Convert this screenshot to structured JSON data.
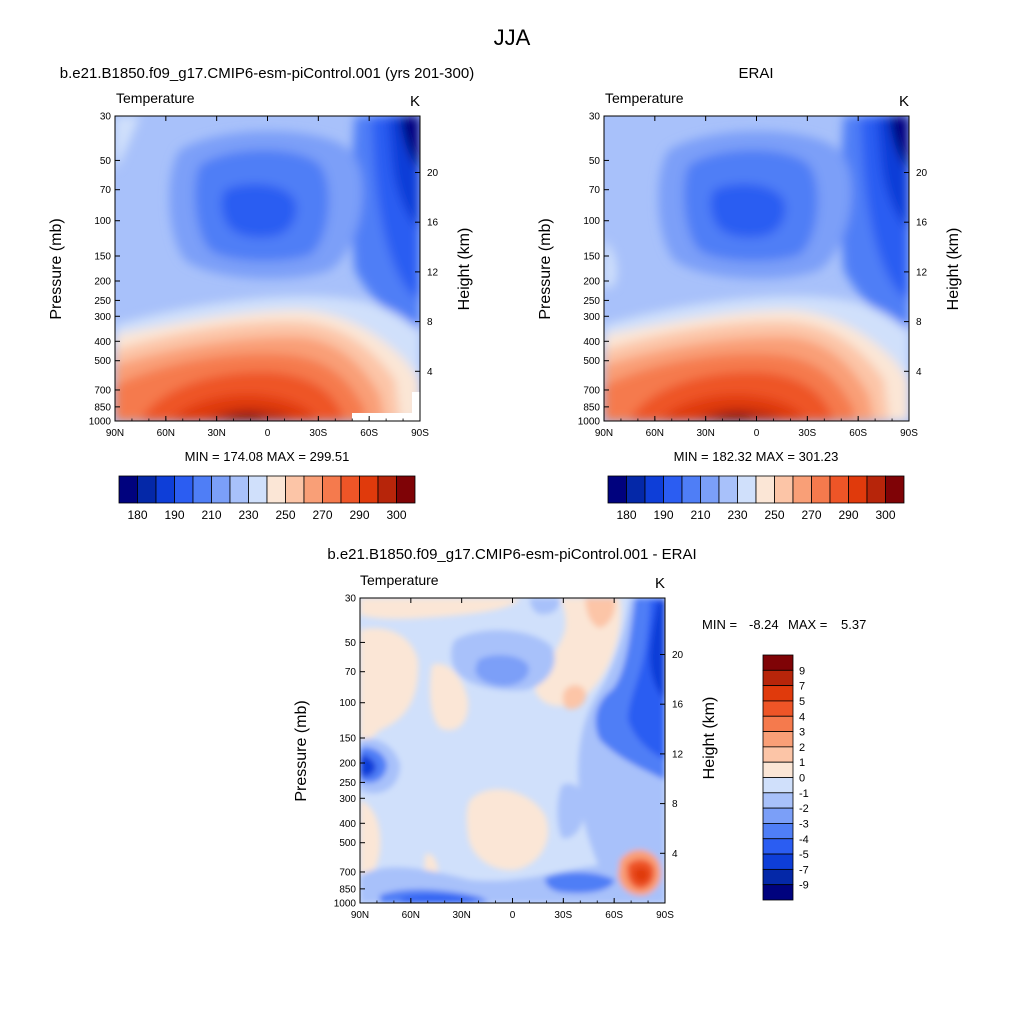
{
  "page": {
    "title": "JJA"
  },
  "chart_data": [
    {
      "type": "heatmap",
      "title": "b.e21.B1850.f09_g17.CMIP6-esm-piControl.001 (yrs 201-300)",
      "variable": "Temperature",
      "units": "K",
      "xlabel": "",
      "ylabel": "Pressure (mb)",
      "ylabel_right": "Height (km)",
      "x_ticks": [
        "90N",
        "60N",
        "30N",
        "0",
        "30S",
        "60S",
        "90S"
      ],
      "y_ticks": [
        "30",
        "50",
        "70",
        "100",
        "150",
        "200",
        "250",
        "300",
        "400",
        "500",
        "700",
        "850",
        "1000"
      ],
      "y_right_ticks": [
        "20",
        "16",
        "12",
        "8",
        "4"
      ],
      "y_scale": "log",
      "stats": "MIN = 174.08  MAX = 299.51",
      "min": 174.08,
      "max": 299.51,
      "colorbar": {
        "orientation": "horizontal",
        "labels": [
          "180",
          "190",
          "210",
          "230",
          "250",
          "270",
          "290",
          "300"
        ],
        "colors": [
          "#00027e",
          "#0428a8",
          "#0e3ed8",
          "#2b5df2",
          "#4f7ef6",
          "#7b9ff8",
          "#a8c1fa",
          "#d0e0fb",
          "#fbe6d6",
          "#fcc5a7",
          "#f99f77",
          "#f57a4d",
          "#ee5527",
          "#e03a0c",
          "#b7250a",
          "#7f0306"
        ]
      }
    },
    {
      "type": "heatmap",
      "title": "ERAI",
      "variable": "Temperature",
      "units": "K",
      "xlabel": "",
      "ylabel": "Pressure (mb)",
      "ylabel_right": "Height (km)",
      "x_ticks": [
        "90N",
        "60N",
        "30N",
        "0",
        "30S",
        "60S",
        "90S"
      ],
      "y_ticks": [
        "30",
        "50",
        "70",
        "100",
        "150",
        "200",
        "250",
        "300",
        "400",
        "500",
        "700",
        "850",
        "1000"
      ],
      "y_right_ticks": [
        "20",
        "16",
        "12",
        "8",
        "4"
      ],
      "y_scale": "log",
      "stats": "MIN = 182.32  MAX = 301.23",
      "min": 182.32,
      "max": 301.23,
      "colorbar": {
        "orientation": "horizontal",
        "labels": [
          "180",
          "190",
          "210",
          "230",
          "250",
          "270",
          "290",
          "300"
        ],
        "colors": [
          "#00027e",
          "#0428a8",
          "#0e3ed8",
          "#2b5df2",
          "#4f7ef6",
          "#7b9ff8",
          "#a8c1fa",
          "#d0e0fb",
          "#fbe6d6",
          "#fcc5a7",
          "#f99f77",
          "#f57a4d",
          "#ee5527",
          "#e03a0c",
          "#b7250a",
          "#7f0306"
        ]
      }
    },
    {
      "type": "heatmap",
      "title": "b.e21.B1850.f09_g17.CMIP6-esm-piControl.001 - ERAI",
      "variable": "Temperature",
      "units": "K",
      "xlabel": "",
      "ylabel": "Pressure (mb)",
      "ylabel_right": "Height (km)",
      "x_ticks": [
        "90N",
        "60N",
        "30N",
        "0",
        "30S",
        "60S",
        "90S"
      ],
      "y_ticks": [
        "30",
        "50",
        "70",
        "100",
        "150",
        "200",
        "250",
        "300",
        "400",
        "500",
        "700",
        "850",
        "1000"
      ],
      "y_right_ticks": [
        "20",
        "16",
        "12",
        "8",
        "4"
      ],
      "y_scale": "log",
      "stats_parts": [
        "MIN =",
        "-8.24",
        "MAX =",
        "5.37"
      ],
      "min": -8.24,
      "max": 5.37,
      "colorbar": {
        "orientation": "vertical",
        "labels": [
          "9",
          "7",
          "5",
          "4",
          "3",
          "2",
          "1",
          "0",
          "-1",
          "-2",
          "-3",
          "-4",
          "-5",
          "-7",
          "-9"
        ],
        "colors": [
          "#7f0306",
          "#b7250a",
          "#e03a0c",
          "#ee5527",
          "#f57a4d",
          "#f99f77",
          "#fcc5a7",
          "#fbe6d6",
          "#d0e0fb",
          "#a8c1fa",
          "#7b9ff8",
          "#4f7ef6",
          "#2b5df2",
          "#0e3ed8",
          "#0428a8",
          "#00027e"
        ]
      }
    }
  ]
}
